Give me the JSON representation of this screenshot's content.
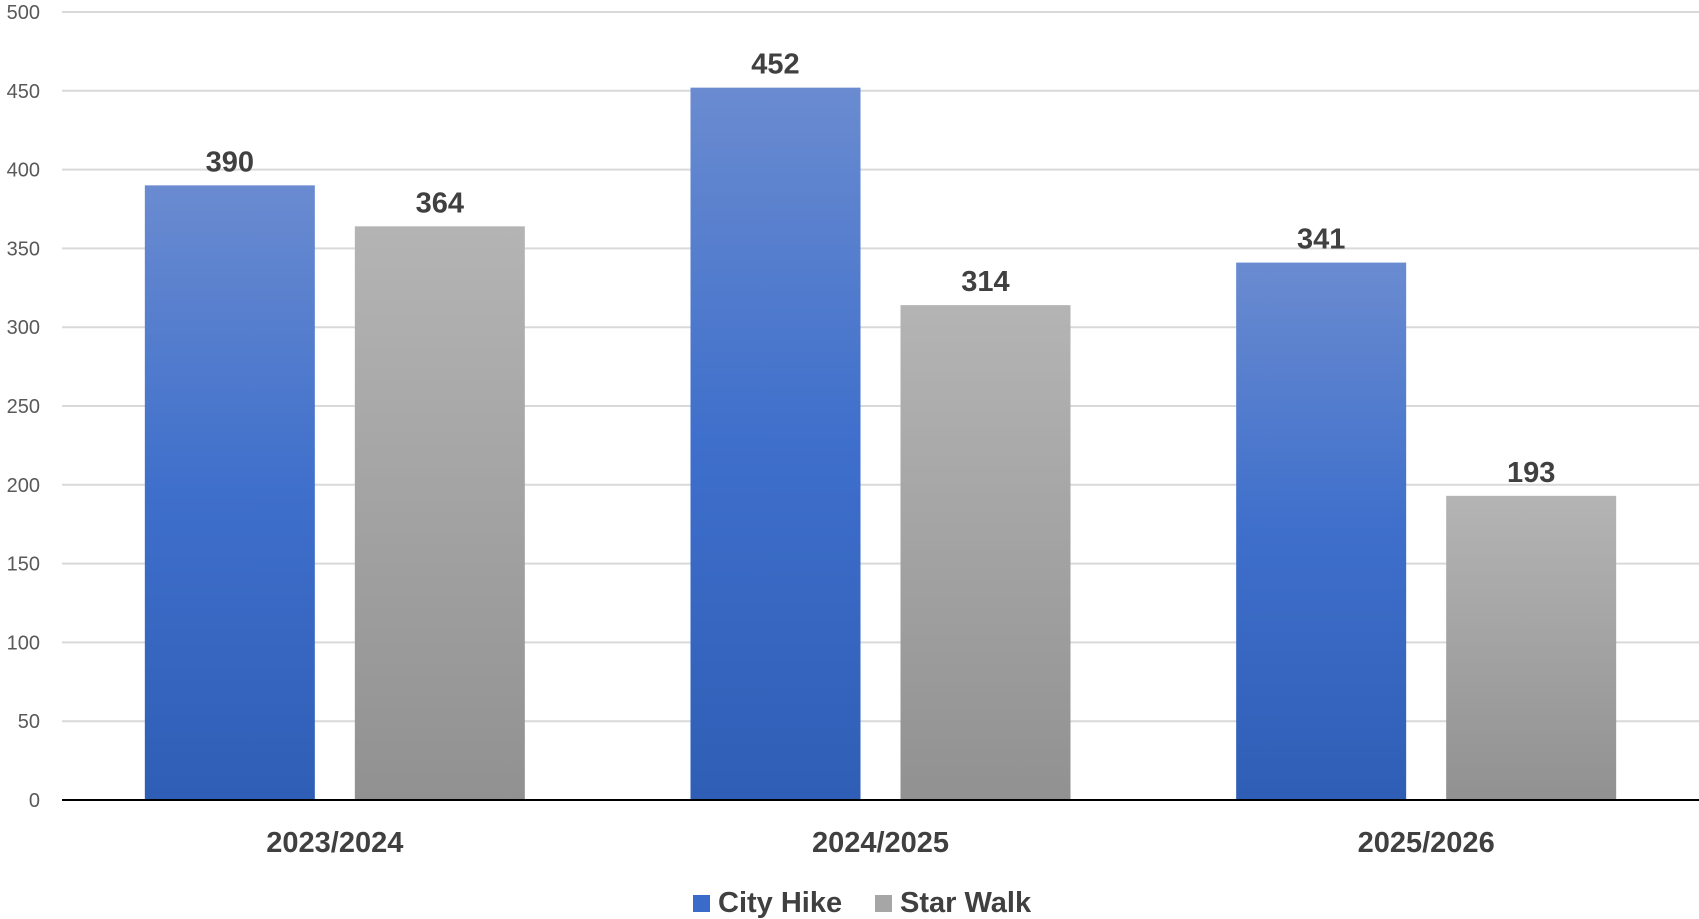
{
  "chart_data": {
    "type": "bar",
    "title": "",
    "xlabel": "",
    "ylabel": "",
    "categories": [
      "2023/2024",
      "2024/2025",
      "2025/2026"
    ],
    "series": [
      {
        "name": "City Hike",
        "values": [
          390,
          452,
          341
        ],
        "color": "#3a6bc8"
      },
      {
        "name": "Star Walk",
        "values": [
          364,
          314,
          193
        ],
        "color": "#a6a6a6"
      }
    ],
    "ylim": [
      0,
      500
    ],
    "yticks": [
      0,
      50,
      100,
      150,
      200,
      250,
      300,
      350,
      400,
      450,
      500
    ],
    "grid": true,
    "legend": "bottom",
    "data_labels": true
  }
}
